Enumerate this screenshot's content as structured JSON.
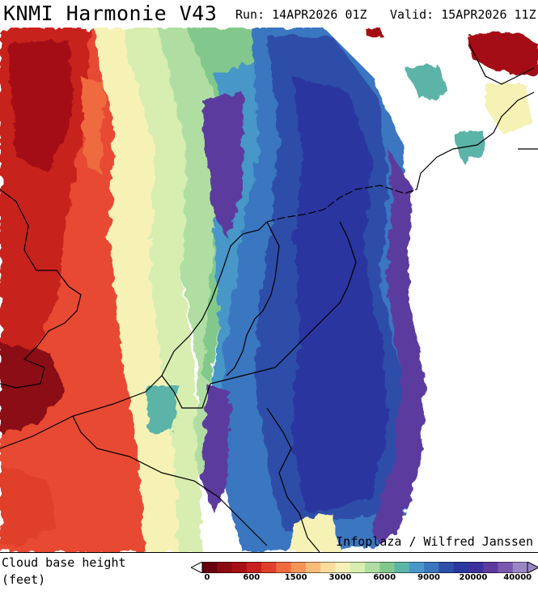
{
  "header": {
    "title": "KNMI Harmonie V43",
    "run": "Run: 14APR2026 01Z",
    "valid": "Valid: 15APR2026 11Z"
  },
  "map": {
    "credit": "Infoplaza / Wilfred Janssen",
    "variable": "Cloud base height"
  },
  "legend": {
    "title_line1": "Cloud base height",
    "title_line2": "(feet)",
    "tick_labels": [
      "0",
      "600",
      "1500",
      "3000",
      "6000",
      "9000",
      "20000",
      "40000"
    ],
    "colors": [
      "#67000d",
      "#8b0a12",
      "#a50f15",
      "#c8201e",
      "#e0402a",
      "#f06a3f",
      "#f59456",
      "#f9bb78",
      "#fcdc9c",
      "#f6f2b6",
      "#d8edb0",
      "#b0dea2",
      "#82c88c",
      "#5cb4a8",
      "#4797c8",
      "#3a76c0",
      "#2e4ea8",
      "#2a36a0",
      "#3c2f9c",
      "#5c3a9e",
      "#7a58b0",
      "#9a86c4"
    ]
  }
}
